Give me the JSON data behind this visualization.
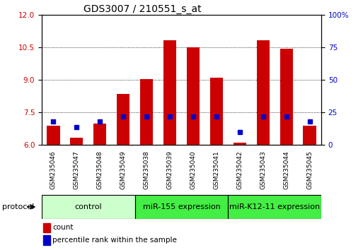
{
  "title": "GDS3007 / 210551_s_at",
  "samples": [
    "GSM235046",
    "GSM235047",
    "GSM235048",
    "GSM235049",
    "GSM235038",
    "GSM235039",
    "GSM235040",
    "GSM235041",
    "GSM235042",
    "GSM235043",
    "GSM235044",
    "GSM235045"
  ],
  "count_values": [
    6.9,
    6.35,
    7.0,
    8.35,
    9.05,
    10.85,
    10.5,
    9.1,
    6.1,
    10.85,
    10.45,
    6.9
  ],
  "percentile_values": [
    18,
    14,
    18,
    22,
    22,
    22,
    22,
    22,
    10,
    22,
    22,
    18
  ],
  "ylim_left": [
    6,
    12
  ],
  "ylim_right": [
    0,
    100
  ],
  "yticks_left": [
    6,
    7.5,
    9,
    10.5,
    12
  ],
  "yticks_right": [
    0,
    25,
    50,
    75,
    100
  ],
  "bar_color_red": "#CC0000",
  "bar_color_blue": "#0000CC",
  "bar_width": 0.55,
  "protocol_groups": [
    {
      "label": "control",
      "start": 0,
      "end": 3,
      "color": "#ccffcc"
    },
    {
      "label": "miR-155 expression",
      "start": 4,
      "end": 7,
      "color": "#44ee44"
    },
    {
      "label": "miR-K12-11 expression",
      "start": 8,
      "end": 11,
      "color": "#44ee44"
    }
  ],
  "legend_count_label": "count",
  "legend_percentile_label": "percentile rank within the sample",
  "xlabel_protocol": "protocol",
  "background_color": "#ffffff",
  "title_fontsize": 10,
  "tick_fontsize": 7.5,
  "sample_fontsize": 6.5,
  "prot_fontsize": 8,
  "legend_fontsize": 7.5
}
